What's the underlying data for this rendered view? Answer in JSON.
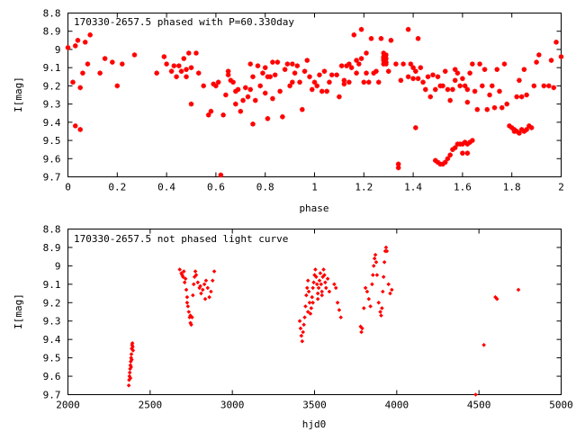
{
  "chart_data": [
    {
      "type": "scatter",
      "title": "170330-2657.5 phased with P=60.330day",
      "xlabel": "phase",
      "ylabel": "I[mag]",
      "xlim": [
        0,
        2
      ],
      "ylim": [
        9.7,
        8.8
      ],
      "y_inverted": true,
      "x_ticks": [
        "0",
        "0.2",
        "0.4",
        "0.6",
        "0.8",
        "1",
        "1.2",
        "1.4",
        "1.6",
        "1.8",
        "2"
      ],
      "y_ticks": [
        "8.8",
        "8.9",
        "9",
        "9.1",
        "9.2",
        "9.3",
        "9.4",
        "9.5",
        "9.6",
        "9.7"
      ],
      "marker_color": "#ff0000",
      "points": [
        [
          0.0,
          8.99
        ],
        [
          0.02,
          9.18
        ],
        [
          0.03,
          8.98
        ],
        [
          0.03,
          9.42
        ],
        [
          0.04,
          8.95
        ],
        [
          0.05,
          9.44
        ],
        [
          0.05,
          9.21
        ],
        [
          0.06,
          9.13
        ],
        [
          0.07,
          8.96
        ],
        [
          0.08,
          9.08
        ],
        [
          0.09,
          8.92
        ],
        [
          0.13,
          9.13
        ],
        [
          0.15,
          9.05
        ],
        [
          0.18,
          9.07
        ],
        [
          0.2,
          9.2
        ],
        [
          0.22,
          9.08
        ],
        [
          0.27,
          9.03
        ],
        [
          0.36,
          9.13
        ],
        [
          0.39,
          9.04
        ],
        [
          0.4,
          9.08
        ],
        [
          0.42,
          9.12
        ],
        [
          0.43,
          9.09
        ],
        [
          0.44,
          9.15
        ],
        [
          0.45,
          9.09
        ],
        [
          0.46,
          9.12
        ],
        [
          0.47,
          9.05
        ],
        [
          0.48,
          9.15
        ],
        [
          0.48,
          9.11
        ],
        [
          0.49,
          9.02
        ],
        [
          0.5,
          9.1
        ],
        [
          0.5,
          9.3
        ],
        [
          0.52,
          9.02
        ],
        [
          0.53,
          9.13
        ],
        [
          0.55,
          9.2
        ],
        [
          0.57,
          9.36
        ],
        [
          0.58,
          9.34
        ],
        [
          0.59,
          9.19
        ],
        [
          0.6,
          9.2
        ],
        [
          0.61,
          9.18
        ],
        [
          0.62,
          9.69
        ],
        [
          0.63,
          9.36
        ],
        [
          0.64,
          9.25
        ],
        [
          0.65,
          9.12
        ],
        [
          0.65,
          9.14
        ],
        [
          0.66,
          9.17
        ],
        [
          0.67,
          9.18
        ],
        [
          0.68,
          9.23
        ],
        [
          0.68,
          9.3
        ],
        [
          0.69,
          9.22
        ],
        [
          0.7,
          9.34
        ],
        [
          0.71,
          9.28
        ],
        [
          0.72,
          9.21
        ],
        [
          0.73,
          9.26
        ],
        [
          0.74,
          9.22
        ],
        [
          0.74,
          9.08
        ],
        [
          0.75,
          9.41
        ],
        [
          0.75,
          9.15
        ],
        [
          0.76,
          9.28
        ],
        [
          0.77,
          9.09
        ],
        [
          0.78,
          9.2
        ],
        [
          0.79,
          9.13
        ],
        [
          0.8,
          9.24
        ],
        [
          0.8,
          9.1
        ],
        [
          0.81,
          9.15
        ],
        [
          0.81,
          9.38
        ],
        [
          0.82,
          9.15
        ],
        [
          0.83,
          9.27
        ],
        [
          0.83,
          9.07
        ],
        [
          0.84,
          9.14
        ],
        [
          0.85,
          9.07
        ],
        [
          0.86,
          9.23
        ],
        [
          0.87,
          9.37
        ],
        [
          0.88,
          9.11
        ],
        [
          0.89,
          9.08
        ],
        [
          0.9,
          9.2
        ],
        [
          0.91,
          9.08
        ],
        [
          0.91,
          9.18
        ],
        [
          0.92,
          9.13
        ],
        [
          0.93,
          9.09
        ],
        [
          0.94,
          9.18
        ],
        [
          0.95,
          9.33
        ],
        [
          0.96,
          9.12
        ],
        [
          0.97,
          9.06
        ],
        [
          0.98,
          9.15
        ],
        [
          0.99,
          9.22
        ],
        [
          1.0,
          9.18
        ],
        [
          1.01,
          9.2
        ],
        [
          1.02,
          9.14
        ],
        [
          1.03,
          9.23
        ],
        [
          1.04,
          9.12
        ],
        [
          1.05,
          9.23
        ],
        [
          1.06,
          9.18
        ],
        [
          1.07,
          9.14
        ],
        [
          1.09,
          9.14
        ],
        [
          1.1,
          9.26
        ],
        [
          1.11,
          9.09
        ],
        [
          1.12,
          9.17
        ],
        [
          1.12,
          9.19
        ],
        [
          1.13,
          9.09
        ],
        [
          1.14,
          9.18
        ],
        [
          1.14,
          9.08
        ],
        [
          1.15,
          9.1
        ],
        [
          1.16,
          8.92
        ],
        [
          1.17,
          9.13
        ],
        [
          1.17,
          9.06
        ],
        [
          1.18,
          9.08
        ],
        [
          1.19,
          8.89
        ],
        [
          1.19,
          9.05
        ],
        [
          1.2,
          9.18
        ],
        [
          1.21,
          9.02
        ],
        [
          1.21,
          9.13
        ],
        [
          1.22,
          9.18
        ],
        [
          1.23,
          8.94
        ],
        [
          1.24,
          9.13
        ],
        [
          1.25,
          9.12
        ],
        [
          1.26,
          9.18
        ],
        [
          1.27,
          8.94
        ],
        [
          1.28,
          9.05
        ],
        [
          1.29,
          9.08
        ],
        [
          1.3,
          9.12
        ],
        [
          1.31,
          8.95
        ],
        [
          1.33,
          9.08
        ],
        [
          1.34,
          9.63
        ],
        [
          1.35,
          9.17
        ],
        [
          1.36,
          9.08
        ],
        [
          1.38,
          8.89
        ],
        [
          1.38,
          9.15
        ],
        [
          1.39,
          9.08
        ],
        [
          1.4,
          9.1
        ],
        [
          1.4,
          9.16
        ],
        [
          1.41,
          9.43
        ],
        [
          1.41,
          9.12
        ],
        [
          1.42,
          8.94
        ],
        [
          1.42,
          9.16
        ],
        [
          1.43,
          9.1
        ],
        [
          1.44,
          9.18
        ],
        [
          1.45,
          9.22
        ],
        [
          1.46,
          9.15
        ],
        [
          1.47,
          9.26
        ],
        [
          1.48,
          9.14
        ],
        [
          1.49,
          9.22
        ],
        [
          1.5,
          9.15
        ],
        [
          1.51,
          9.2
        ],
        [
          1.52,
          9.2
        ],
        [
          1.53,
          9.12
        ],
        [
          1.54,
          9.22
        ],
        [
          1.55,
          9.28
        ],
        [
          1.56,
          9.22
        ],
        [
          1.57,
          9.11
        ],
        [
          1.57,
          9.17
        ],
        [
          1.58,
          9.13
        ],
        [
          1.59,
          9.2
        ],
        [
          1.6,
          9.16
        ],
        [
          1.61,
          9.2
        ],
        [
          1.62,
          9.29
        ],
        [
          1.62,
          9.22
        ],
        [
          1.63,
          9.13
        ],
        [
          1.64,
          9.08
        ],
        [
          1.65,
          9.23
        ],
        [
          1.66,
          9.33
        ],
        [
          1.67,
          9.08
        ],
        [
          1.68,
          9.2
        ],
        [
          1.69,
          9.11
        ],
        [
          1.7,
          9.33
        ],
        [
          1.71,
          9.25
        ],
        [
          1.72,
          9.2
        ],
        [
          1.73,
          9.32
        ],
        [
          1.74,
          9.11
        ],
        [
          1.75,
          9.23
        ],
        [
          1.76,
          9.32
        ],
        [
          1.77,
          9.08
        ],
        [
          1.78,
          9.3
        ],
        [
          1.79,
          9.42
        ],
        [
          1.8,
          9.43
        ],
        [
          1.81,
          9.44
        ],
        [
          1.82,
          9.26
        ],
        [
          1.83,
          9.17
        ],
        [
          1.84,
          9.44
        ],
        [
          1.84,
          9.26
        ],
        [
          1.85,
          9.11
        ],
        [
          1.86,
          9.25
        ],
        [
          1.87,
          9.42
        ],
        [
          1.89,
          9.2
        ],
        [
          1.9,
          9.07
        ],
        [
          1.91,
          9.03
        ],
        [
          1.93,
          9.2
        ],
        [
          1.95,
          9.2
        ],
        [
          1.96,
          9.06
        ],
        [
          1.97,
          9.21
        ],
        [
          1.98,
          8.96
        ],
        [
          2.0,
          9.04
        ],
        [
          1.28,
          9.02
        ],
        [
          1.28,
          9.04
        ],
        [
          1.28,
          9.06
        ],
        [
          1.28,
          9.08
        ],
        [
          1.29,
          9.03
        ],
        [
          1.29,
          9.05
        ],
        [
          1.29,
          9.07
        ],
        [
          1.34,
          9.65
        ],
        [
          1.49,
          9.61
        ],
        [
          1.5,
          9.62
        ],
        [
          1.51,
          9.63
        ],
        [
          1.52,
          9.63
        ],
        [
          1.53,
          9.62
        ],
        [
          1.54,
          9.6
        ],
        [
          1.55,
          9.58
        ],
        [
          1.56,
          9.55
        ],
        [
          1.57,
          9.54
        ],
        [
          1.58,
          9.52
        ],
        [
          1.59,
          9.52
        ],
        [
          1.6,
          9.52
        ],
        [
          1.61,
          9.51
        ],
        [
          1.62,
          9.52
        ],
        [
          1.63,
          9.51
        ],
        [
          1.64,
          9.5
        ],
        [
          1.6,
          9.57
        ],
        [
          1.62,
          9.57
        ],
        [
          1.81,
          9.45
        ],
        [
          1.82,
          9.45
        ],
        [
          1.83,
          9.46
        ],
        [
          1.85,
          9.45
        ],
        [
          1.86,
          9.44
        ],
        [
          1.88,
          9.43
        ]
      ]
    },
    {
      "type": "scatter",
      "title": "170330-2657.5 not phased light curve",
      "xlabel": "hjd0",
      "ylabel": "I[mag]",
      "xlim": [
        2000,
        5000
      ],
      "ylim": [
        9.7,
        8.8
      ],
      "y_inverted": true,
      "x_ticks": [
        "2000",
        "2500",
        "3000",
        "3500",
        "4000",
        "4500",
        "5000"
      ],
      "y_ticks": [
        "8.8",
        "8.9",
        "9",
        "9.1",
        "9.2",
        "9.3",
        "9.4",
        "9.5",
        "9.6",
        "9.7"
      ],
      "marker_color": "#ff0000",
      "points": [
        [
          2370,
          9.65
        ],
        [
          2372,
          9.62
        ],
        [
          2374,
          9.6
        ],
        [
          2376,
          9.58
        ],
        [
          2378,
          9.56
        ],
        [
          2380,
          9.54
        ],
        [
          2382,
          9.52
        ],
        [
          2384,
          9.5
        ],
        [
          2386,
          9.48
        ],
        [
          2388,
          9.45
        ],
        [
          2390,
          9.43
        ],
        [
          2392,
          9.42
        ],
        [
          2394,
          9.44
        ],
        [
          2396,
          9.46
        ],
        [
          2380,
          9.61
        ],
        [
          2384,
          9.55
        ],
        [
          2388,
          9.51
        ],
        [
          2680,
          9.02
        ],
        [
          2690,
          9.04
        ],
        [
          2700,
          9.06
        ],
        [
          2705,
          9.03
        ],
        [
          2710,
          9.09
        ],
        [
          2715,
          9.07
        ],
        [
          2720,
          9.13
        ],
        [
          2725,
          9.17
        ],
        [
          2730,
          9.22
        ],
        [
          2735,
          9.25
        ],
        [
          2740,
          9.28
        ],
        [
          2745,
          9.31
        ],
        [
          2750,
          9.32
        ],
        [
          2755,
          9.28
        ],
        [
          2760,
          9.16
        ],
        [
          2765,
          9.1
        ],
        [
          2770,
          9.06
        ],
        [
          2775,
          9.03
        ],
        [
          2780,
          9.05
        ],
        [
          2790,
          9.09
        ],
        [
          2800,
          9.12
        ],
        [
          2810,
          9.15
        ],
        [
          2820,
          9.13
        ],
        [
          2830,
          9.1
        ],
        [
          2840,
          9.08
        ],
        [
          2850,
          9.12
        ],
        [
          2860,
          9.17
        ],
        [
          2870,
          9.14
        ],
        [
          2880,
          9.08
        ],
        [
          2890,
          9.03
        ],
        [
          2695,
          9.05
        ],
        [
          2725,
          9.2
        ],
        [
          2745,
          9.27
        ],
        [
          2805,
          9.11
        ],
        [
          2835,
          9.18
        ],
        [
          3410,
          9.3
        ],
        [
          3415,
          9.34
        ],
        [
          3420,
          9.38
        ],
        [
          3425,
          9.41
        ],
        [
          3430,
          9.36
        ],
        [
          3435,
          9.32
        ],
        [
          3440,
          9.28
        ],
        [
          3445,
          9.22
        ],
        [
          3450,
          9.16
        ],
        [
          3455,
          9.12
        ],
        [
          3460,
          9.08
        ],
        [
          3465,
          9.14
        ],
        [
          3470,
          9.2
        ],
        [
          3475,
          9.26
        ],
        [
          3480,
          9.23
        ],
        [
          3485,
          9.17
        ],
        [
          3490,
          9.12
        ],
        [
          3495,
          9.09
        ],
        [
          3500,
          9.05
        ],
        [
          3505,
          9.02
        ],
        [
          3510,
          9.06
        ],
        [
          3515,
          9.1
        ],
        [
          3520,
          9.15
        ],
        [
          3525,
          9.12
        ],
        [
          3530,
          9.08
        ],
        [
          3535,
          9.04
        ],
        [
          3540,
          9.1
        ],
        [
          3545,
          9.14
        ],
        [
          3550,
          9.06
        ],
        [
          3555,
          9.02
        ],
        [
          3560,
          9.05
        ],
        [
          3565,
          9.09
        ],
        [
          3570,
          9.12
        ],
        [
          3580,
          9.07
        ],
        [
          3590,
          9.14
        ],
        [
          3620,
          9.1
        ],
        [
          3630,
          9.12
        ],
        [
          3640,
          9.2
        ],
        [
          3650,
          9.24
        ],
        [
          3660,
          9.28
        ],
        [
          3460,
          9.25
        ],
        [
          3490,
          9.2
        ],
        [
          3520,
          9.18
        ],
        [
          3545,
          9.16
        ],
        [
          3780,
          9.33
        ],
        [
          3785,
          9.36
        ],
        [
          3790,
          9.34
        ],
        [
          3800,
          9.23
        ],
        [
          3810,
          9.12
        ],
        [
          3820,
          9.14
        ],
        [
          3830,
          9.18
        ],
        [
          3840,
          9.22
        ],
        [
          3850,
          9.1
        ],
        [
          3855,
          9.05
        ],
        [
          3860,
          9.0
        ],
        [
          3865,
          8.96
        ],
        [
          3870,
          8.94
        ],
        [
          3875,
          8.98
        ],
        [
          3880,
          9.05
        ],
        [
          3890,
          9.2
        ],
        [
          3900,
          9.25
        ],
        [
          3905,
          9.27
        ],
        [
          3910,
          9.23
        ],
        [
          3915,
          9.14
        ],
        [
          3920,
          9.06
        ],
        [
          3925,
          8.98
        ],
        [
          3930,
          8.92
        ],
        [
          3935,
          8.9
        ],
        [
          3940,
          8.92
        ],
        [
          3950,
          9.1
        ],
        [
          3960,
          9.15
        ],
        [
          3970,
          9.13
        ],
        [
          4480,
          9.7
        ],
        [
          4530,
          9.43
        ],
        [
          4600,
          9.17
        ],
        [
          4610,
          9.18
        ],
        [
          4740,
          9.13
        ]
      ]
    }
  ]
}
